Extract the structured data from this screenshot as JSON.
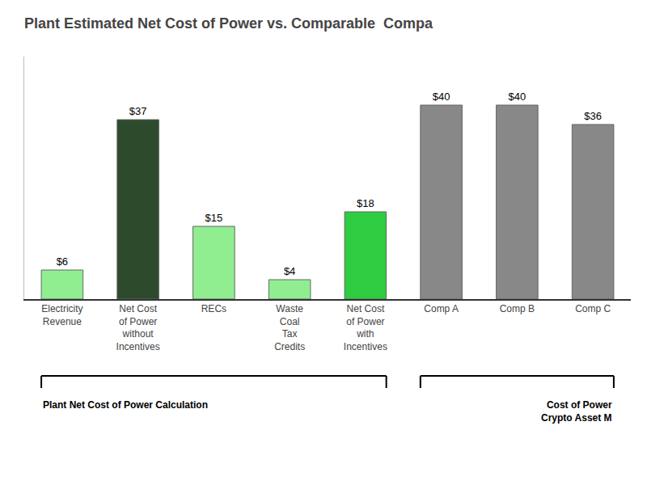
{
  "chart_data": {
    "type": "bar",
    "title": "Plant Estimated Net Cost of Power vs. Comparable  Compa",
    "categories": [
      "Electricity\nRevenue",
      "Net Cost\nof Power\nwithout\nIncentives",
      "RECs",
      "Waste\nCoal\nTax\nCredits",
      "Net Cost\nof Power\nwith\nIncentives",
      "Comp A",
      "Comp B",
      "Comp C"
    ],
    "values": [
      6,
      37,
      15,
      4,
      18,
      40,
      40,
      36
    ],
    "value_labels": [
      "$6",
      "$37",
      "$15",
      "$4",
      "$18",
      "$40",
      "$40",
      "$36"
    ],
    "data_labels": true,
    "colors": [
      "#90ee90",
      "#2d4a2d",
      "#90ee90",
      "#90ee90",
      "#2ecc40",
      "#888888",
      "#888888",
      "#888888"
    ],
    "ylim": [
      0,
      50
    ],
    "grid": false,
    "tick_labels": "x",
    "annotations": [
      "Plant Net Cost of Power Calculation",
      "Cost of Power\nCrypto Asset M"
    ]
  }
}
